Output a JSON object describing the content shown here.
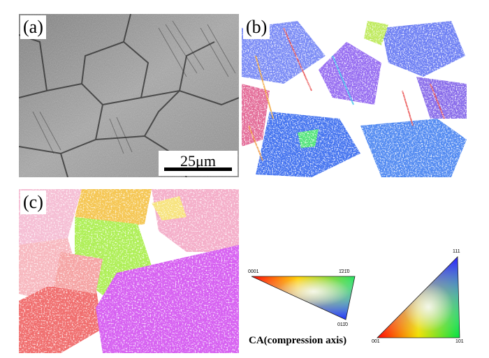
{
  "figure": {
    "panels": [
      {
        "label": "(a)",
        "kind": "optical-micrograph"
      },
      {
        "label": "(b)",
        "kind": "ebsd-map-hcp"
      },
      {
        "label": "(c)",
        "kind": "ebsd-map-cubic"
      }
    ],
    "scale_bar": {
      "text": "25μm"
    },
    "legend": {
      "caption": "CA(compression axis)",
      "hex_triangle": {
        "corners": [
          "0001",
          "1̄21̄0",
          "011̄0"
        ]
      },
      "cubic_triangle": {
        "corners": [
          "111",
          "001",
          "101"
        ]
      }
    }
  }
}
